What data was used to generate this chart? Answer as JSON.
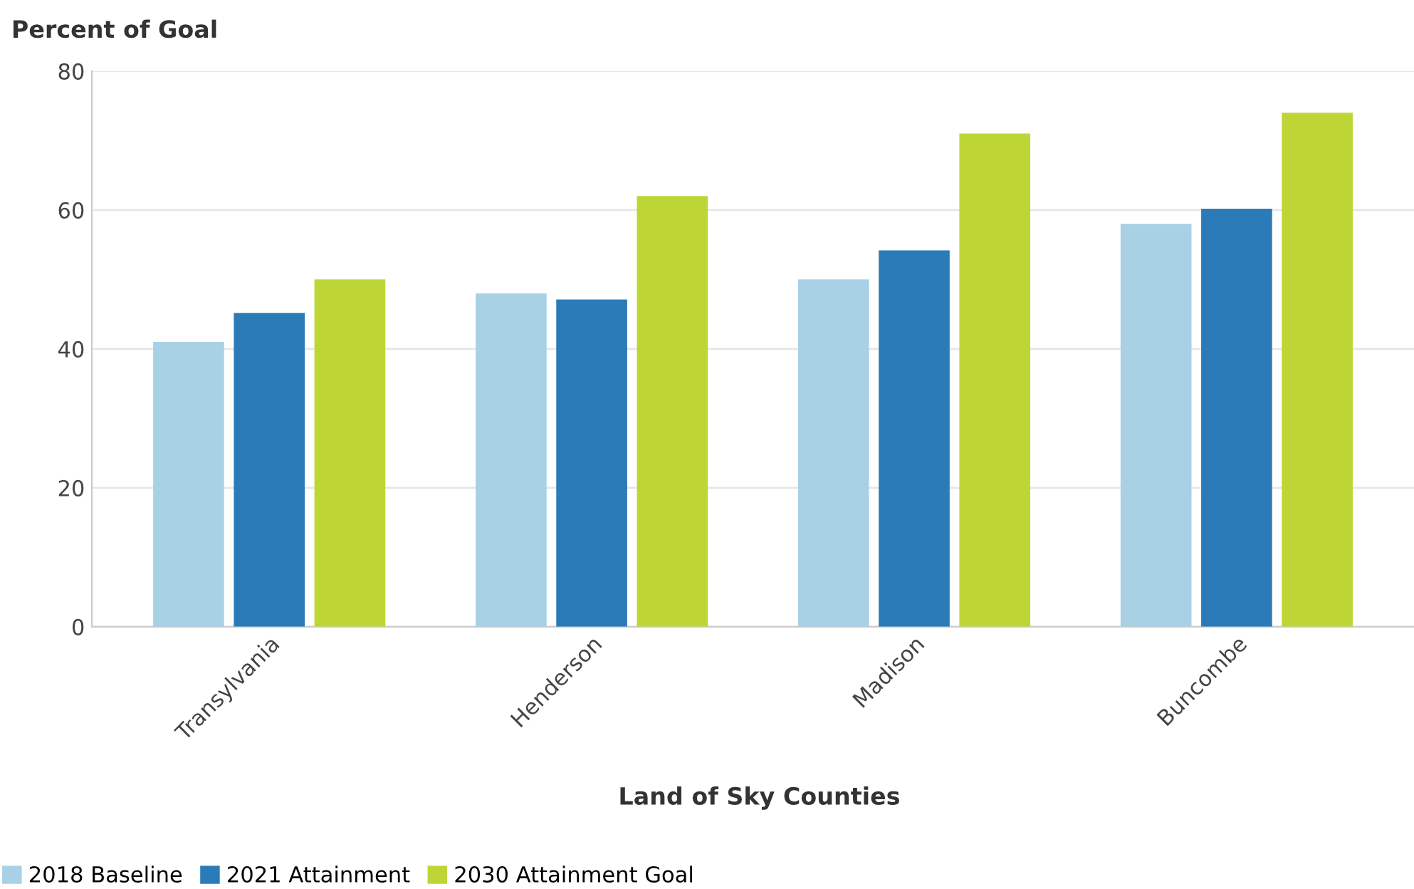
{
  "chart_data": {
    "type": "bar",
    "ylabel": "Percent of Goal",
    "xlabel": "Land of Sky Counties",
    "categories": [
      "Transylvania",
      "Henderson",
      "Madison",
      "Buncombe"
    ],
    "series": [
      {
        "name": "2018 Baseline",
        "color": "#a8d1e5",
        "values": [
          41,
          48,
          50,
          58
        ]
      },
      {
        "name": "2021 Attainment",
        "color": "#2b7bb9",
        "values": [
          45.2,
          47.1,
          54.2,
          60.2
        ]
      },
      {
        "name": "2030 Attainment Goal",
        "color": "#bdd636",
        "values": [
          50,
          62,
          71,
          74
        ]
      }
    ],
    "ylim": [
      0,
      80
    ],
    "yticks": [
      0,
      20,
      40,
      60,
      80
    ],
    "grid": "y",
    "legend": "bottom left"
  }
}
